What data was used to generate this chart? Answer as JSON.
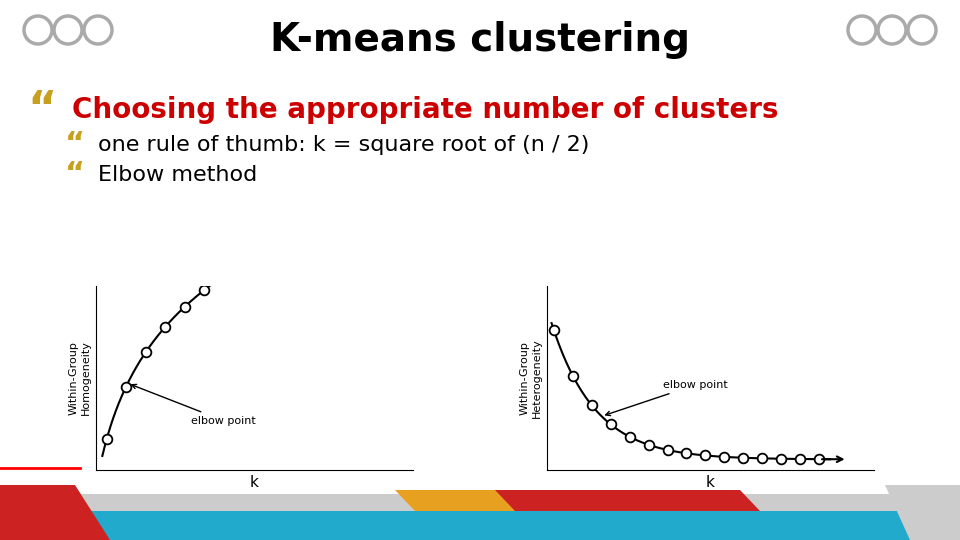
{
  "title": "K-means clustering",
  "title_fontsize": 28,
  "title_color": "#000000",
  "bg_color": "#ffffff",
  "bullet_color": "#c8a020",
  "main_bullet_text": "Choosing the appropriate number of clusters",
  "main_bullet_color": "#cc0000",
  "main_bullet_fontsize": 20,
  "sub_bullets": [
    "one rule of thumb: k = square root of (n / 2)",
    "Elbow method"
  ],
  "sub_bullet_fontsize": 16,
  "sub_bullet_color": "#000000",
  "circle_color": "#aaaaaa",
  "teal_color": "#22aacc",
  "gray_color": "#cccccc",
  "red_color": "#cc2222",
  "orange_color": "#e8a020",
  "graph1_ylabel": "Within-Group\nHomogeneity",
  "graph2_ylabel": "Within-Group\nHeterogeneity",
  "graph_xlabel": "k"
}
